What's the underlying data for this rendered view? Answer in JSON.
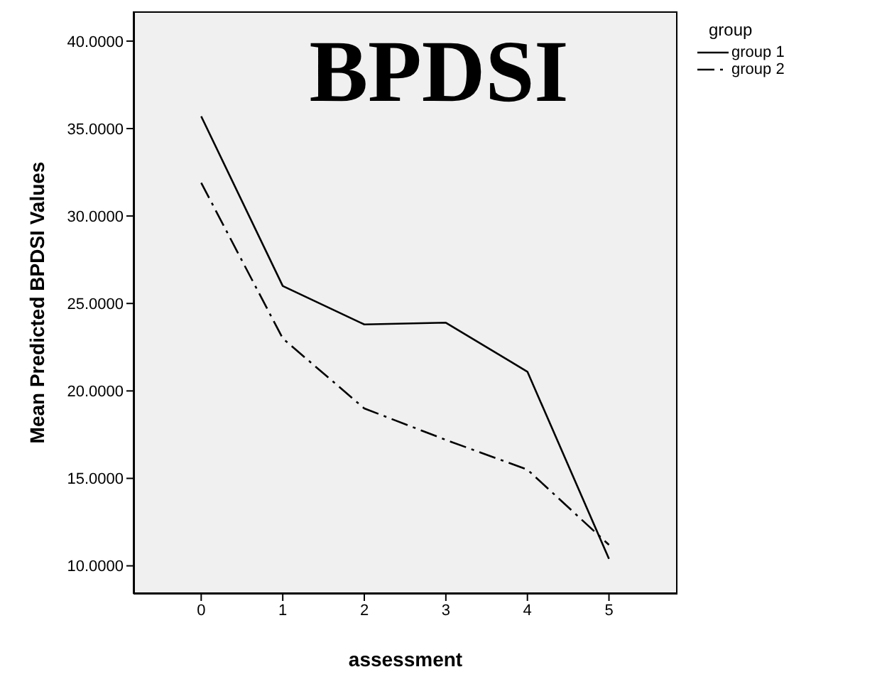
{
  "chart_data": {
    "type": "line",
    "title": "BPDSI",
    "xlabel": "assessment",
    "ylabel": "Mean Predicted BPDSI Values",
    "legend_title": "group",
    "x": [
      0,
      1,
      2,
      3,
      4,
      5
    ],
    "series": [
      {
        "name": "group 1",
        "color": "#000000",
        "line_style": "solid",
        "values": [
          35.7,
          26.0,
          23.8,
          23.9,
          21.1,
          10.4
        ]
      },
      {
        "name": "group 2",
        "color": "#000000",
        "line_style": "dashed",
        "values": [
          31.9,
          23.0,
          19.0,
          17.2,
          15.5,
          11.2
        ]
      }
    ],
    "xlim": [
      -0.83,
      5.84
    ],
    "xticks": [
      0,
      1,
      2,
      3,
      4,
      5
    ],
    "ylim": [
      8.4,
      41.7
    ],
    "yticks": [
      {
        "value": 10,
        "label": "10.0000"
      },
      {
        "value": 15,
        "label": "15.0000"
      },
      {
        "value": 20,
        "label": "20.0000"
      },
      {
        "value": 25,
        "label": "25.0000"
      },
      {
        "value": 30,
        "label": "30.0000"
      },
      {
        "value": 35,
        "label": "35.0000"
      },
      {
        "value": 40,
        "label": "40.0000"
      }
    ],
    "grid": false,
    "legend": "top right",
    "marker": "none"
  }
}
